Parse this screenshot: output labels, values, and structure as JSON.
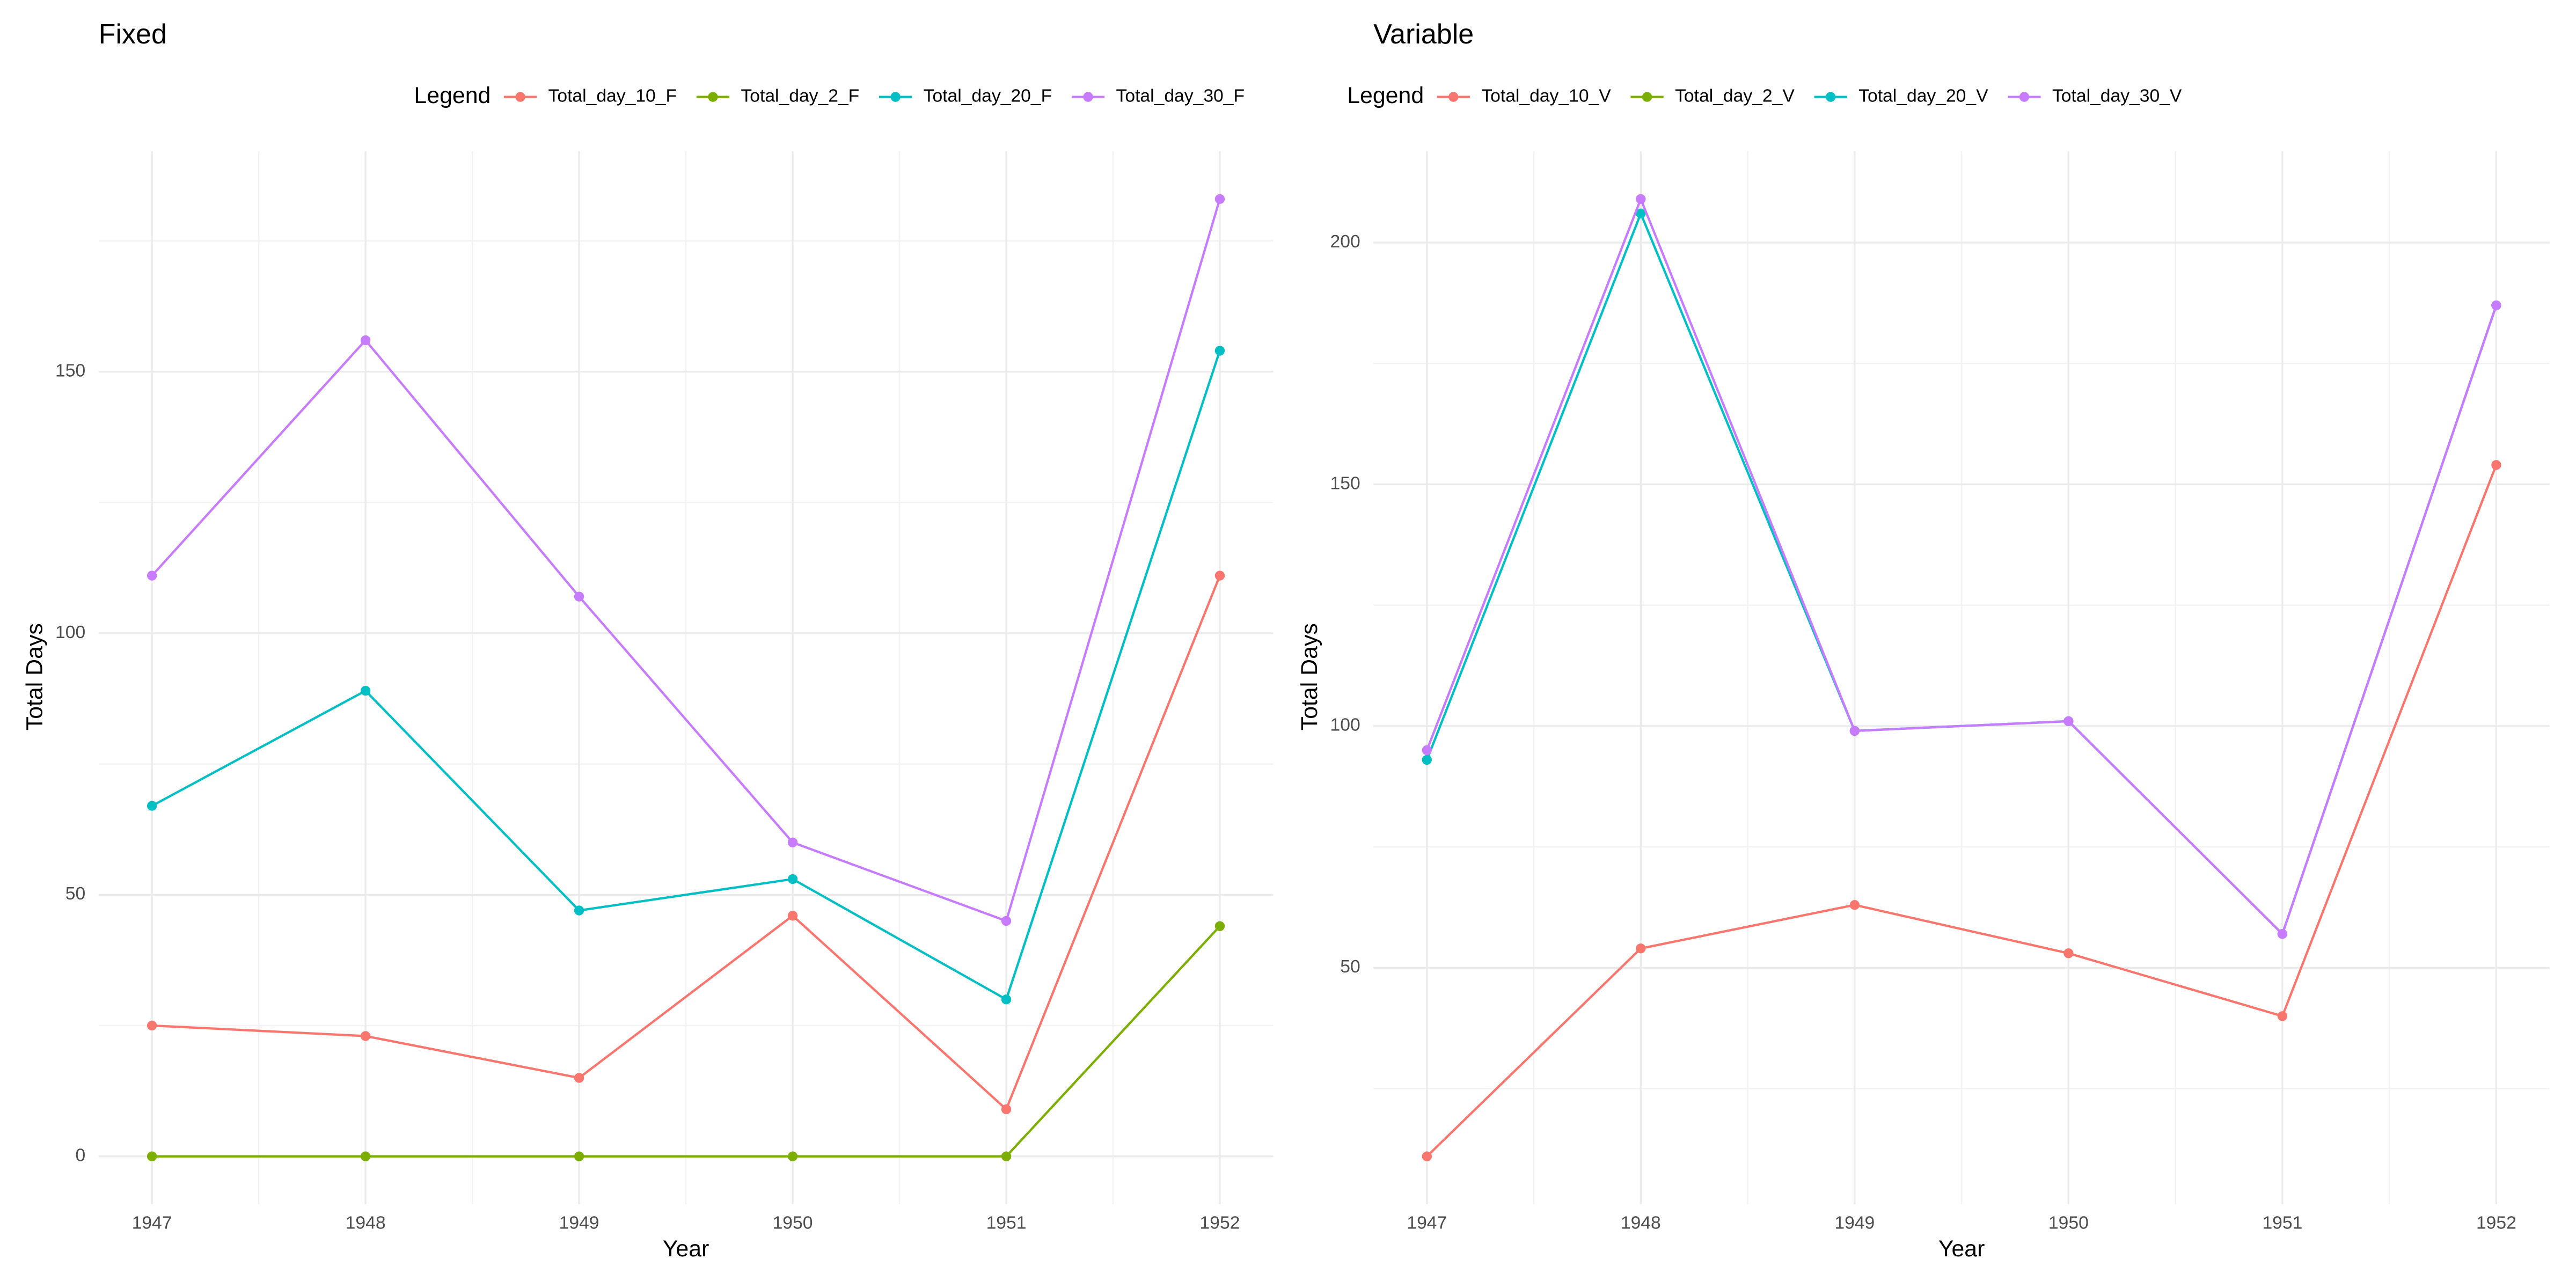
{
  "chart_data": [
    {
      "type": "line",
      "title": "Fixed",
      "legend_title": "Legend",
      "x_label": "Year",
      "y_label": "Total Days",
      "x": [
        1947,
        1948,
        1949,
        1950,
        1951,
        1952
      ],
      "xlim": [
        1946.75,
        1952.25
      ],
      "xticks": [
        1947,
        1948,
        1949,
        1950,
        1951,
        1952
      ],
      "ylim": [
        -9.15,
        192.15
      ],
      "yticks": [
        0,
        50,
        100,
        150
      ],
      "minor_yticks": [
        25,
        75,
        125,
        175
      ],
      "grid": true,
      "series": [
        {
          "name": "Total_day_10_F",
          "color": "#F8766D",
          "values": [
            25,
            23,
            15,
            46,
            9,
            111
          ]
        },
        {
          "name": "Total_day_2_F",
          "color": "#7CAE00",
          "values": [
            0,
            0,
            0,
            0,
            0,
            44
          ]
        },
        {
          "name": "Total_day_20_F",
          "color": "#00BFC4",
          "values": [
            67,
            89,
            47,
            53,
            30,
            154
          ]
        },
        {
          "name": "Total_day_30_F",
          "color": "#C77CFF",
          "values": [
            111,
            156,
            107,
            60,
            45,
            183
          ]
        }
      ]
    },
    {
      "type": "line",
      "title": "Variable",
      "legend_title": "Legend",
      "x_label": "Year",
      "y_label": "Total Days",
      "x": [
        1947,
        1948,
        1949,
        1950,
        1951,
        1952
      ],
      "xlim": [
        1946.75,
        1952.25
      ],
      "xticks": [
        1947,
        1948,
        1949,
        1950,
        1951,
        1952
      ],
      "ylim": [
        1.1,
        218.9
      ],
      "yticks": [
        50,
        100,
        150,
        200
      ],
      "minor_yticks": [
        25,
        75,
        125,
        175
      ],
      "grid": true,
      "series": [
        {
          "name": "Total_day_10_V",
          "color": "#F8766D",
          "values": [
            11,
            54,
            63,
            53,
            40,
            154
          ]
        },
        {
          "name": "Total_day_2_V",
          "color": "#7CAE00",
          "values": [
            null,
            null,
            null,
            null,
            null,
            null
          ]
        },
        {
          "name": "Total_day_20_V",
          "color": "#00BFC4",
          "values": [
            93,
            206,
            99,
            101,
            57,
            187
          ]
        },
        {
          "name": "Total_day_30_V",
          "color": "#C77CFF",
          "values": [
            95,
            209,
            99,
            101,
            57,
            187
          ]
        }
      ]
    }
  ]
}
